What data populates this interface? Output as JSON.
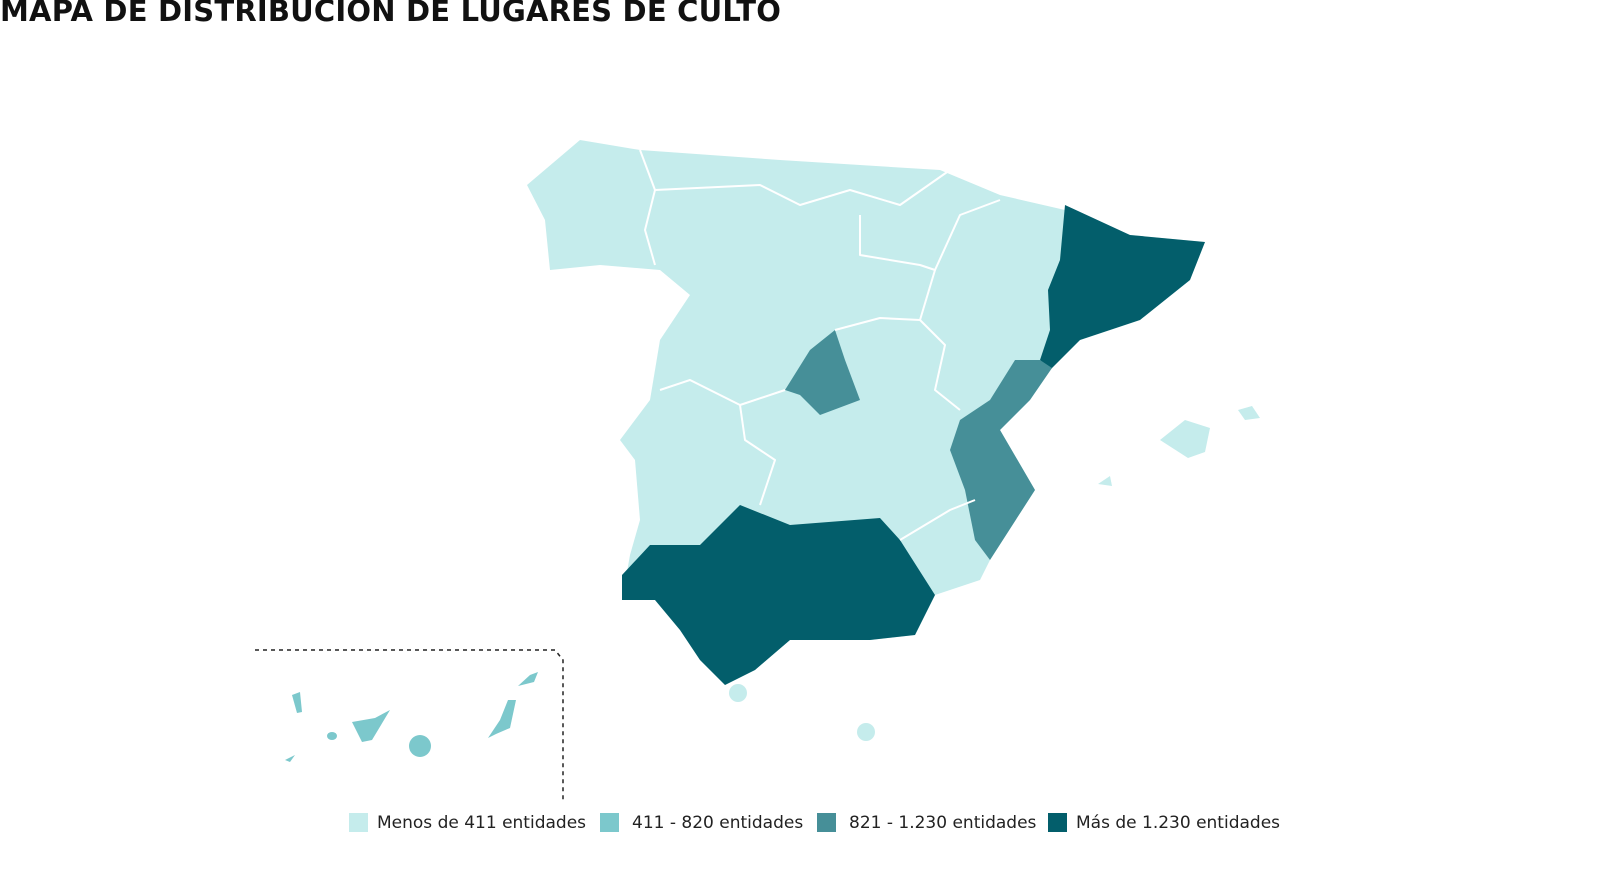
{
  "title": "MAPA DE DISTRIBUCIÓN DE LUGARES DE CULTO",
  "legend": [
    {
      "label": "Menos de 411 entidades",
      "color": "#c5ecec"
    },
    {
      "label": "411 - 820 entidades",
      "color": "#7cc8cc"
    },
    {
      "label": "821 - 1.230 entidades",
      "color": "#468f98"
    },
    {
      "label": "Más de 1.230 entidades",
      "color": "#035e6b"
    }
  ]
}
